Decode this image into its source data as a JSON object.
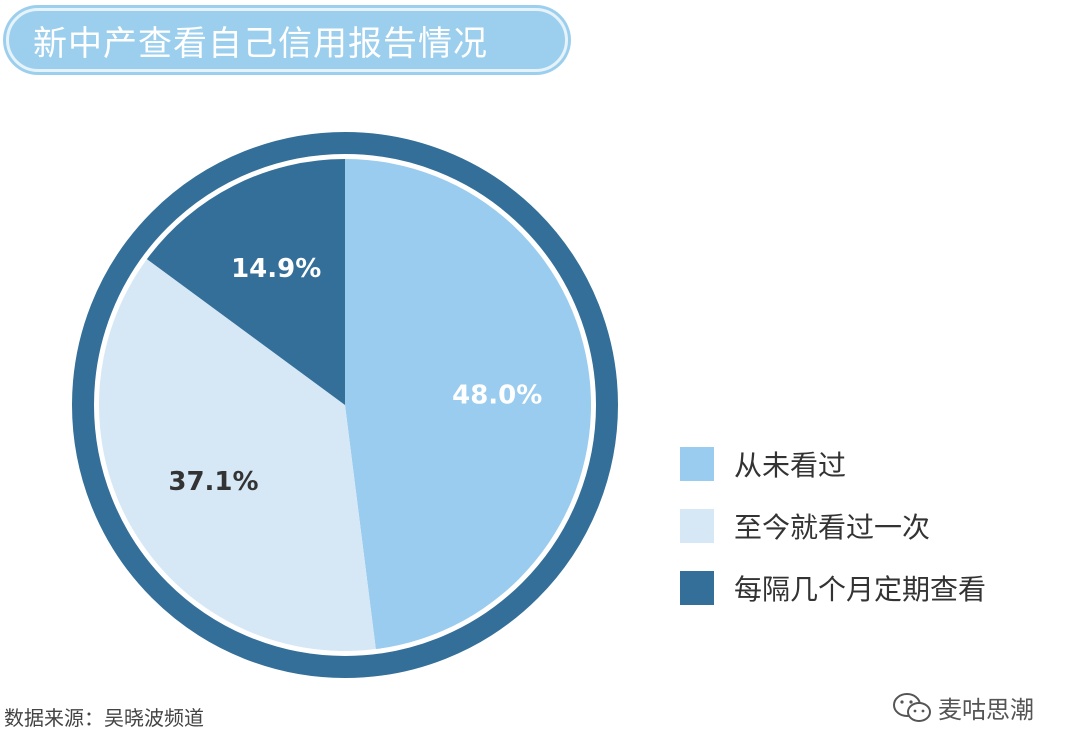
{
  "chart_data": {
    "type": "pie",
    "title": "新中产查看自己信用报告情况",
    "categories": [
      "从未看过",
      "至今就看过一次",
      "每隔几个月定期查看"
    ],
    "values": [
      48.0,
      37.1,
      14.9
    ],
    "value_labels": [
      "48.0%",
      "37.1%",
      "14.9%"
    ],
    "colors": [
      "#99ccee",
      "#d6e8f6",
      "#336f98"
    ],
    "label_colors": [
      "#ffffff",
      "#333333",
      "#ffffff"
    ],
    "start": "12 o'clock, clockwise",
    "legend_position": "right-bottom"
  },
  "ring_color": "#336f98",
  "source": "数据来源：吴晓波频道",
  "watermark": {
    "icon": "wechat-icon",
    "text": "麦咕思潮"
  }
}
